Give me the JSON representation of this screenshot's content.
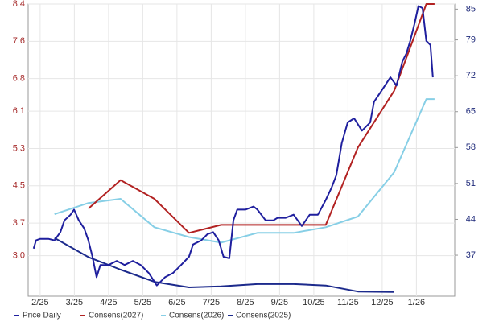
{
  "chart_data": {
    "type": "line",
    "xlim": [
      -0.35,
      12.12
    ],
    "xticks": [
      {
        "value": 0,
        "label": "2/25"
      },
      {
        "value": 1,
        "label": "3/25"
      },
      {
        "value": 2,
        "label": "4/25"
      },
      {
        "value": 3,
        "label": "5/25"
      },
      {
        "value": 4,
        "label": "6/25"
      },
      {
        "value": 5,
        "label": "7/25"
      },
      {
        "value": 6,
        "label": "8/25"
      },
      {
        "value": 7,
        "label": "9/25"
      },
      {
        "value": 8,
        "label": "10/25"
      },
      {
        "value": 9,
        "label": "11/25"
      },
      {
        "value": 10,
        "label": "12/25"
      },
      {
        "value": 11,
        "label": "1/26"
      }
    ],
    "ylim": [
      2.13,
      8.4
    ],
    "yticks": [
      {
        "value": 3,
        "label": "3.0"
      },
      3.7,
      4.5,
      5.3,
      6.1,
      6.8,
      7.6,
      8.4
    ],
    "y2lim": [
      29,
      86
    ],
    "y2ticks": [
      37,
      44,
      51,
      58,
      65,
      72,
      79,
      85
    ],
    "grid": true,
    "series": [
      {
        "name": "Price Daily",
        "color": "#1f1f9e",
        "axis": "y2",
        "x": [
          -0.19,
          -0.12,
          0,
          0.24,
          0.42,
          0.59,
          0.71,
          0.89,
          0.99,
          1.13,
          1.29,
          1.41,
          1.53,
          1.65,
          1.76,
          2,
          2.24,
          2.47,
          2.71,
          2.94,
          3.18,
          3.41,
          3.65,
          3.88,
          4.12,
          4.35,
          4.47,
          4.71,
          4.89,
          5.06,
          5.22,
          5.36,
          5.53,
          5.65,
          5.76,
          6,
          6.24,
          6.35,
          6.59,
          6.82,
          6.94,
          7.18,
          7.41,
          7.65,
          7.88,
          8.12,
          8.35,
          8.52,
          8.66,
          8.82,
          8.99,
          9.18,
          9.41,
          9.65,
          9.76,
          10,
          10.24,
          10.42,
          10.59,
          10.71,
          10.82,
          10.94,
          11.06,
          11.18,
          11.29,
          11.41,
          11.48
        ],
        "values": [
          38.3,
          39.9,
          40.2,
          40.2,
          39.9,
          41.5,
          43.8,
          44.9,
          45.9,
          43.8,
          42.2,
          39.9,
          36.7,
          32.7,
          35.1,
          35.1,
          35.9,
          35.1,
          35.9,
          35.1,
          33.5,
          31.1,
          32.7,
          33.5,
          35.1,
          36.7,
          39.1,
          39.9,
          41.1,
          41.5,
          39.9,
          36.7,
          36.4,
          43.8,
          45.9,
          45.9,
          46.5,
          45.9,
          43.8,
          43.8,
          44.3,
          44.3,
          44.9,
          42.7,
          44.9,
          44.9,
          47.8,
          50.2,
          52.6,
          58.9,
          62.9,
          63.7,
          61.3,
          62.9,
          66.9,
          69.3,
          71.7,
          70.1,
          74.8,
          76.4,
          78.8,
          82,
          85.6,
          85.2,
          78.8,
          78,
          71.7
        ]
      },
      {
        "name": "Consens(2027)",
        "color": "#b22222",
        "x": [
          1.41,
          2.35,
          3.34,
          4.35,
          5.29,
          6.35,
          7.41,
          8.35,
          9.29,
          10.35,
          11.29,
          11.53
        ],
        "values": [
          4.01,
          4.62,
          4.22,
          3.49,
          3.66,
          3.66,
          3.66,
          3.66,
          5.32,
          6.54,
          8.4,
          8.4
        ]
      },
      {
        "name": "Consens(2026)",
        "color": "#87cfe6",
        "x": [
          0.42,
          1.41,
          2.35,
          3.34,
          4.35,
          5.29,
          6.35,
          7.41,
          8.35,
          9.29,
          10.35,
          11.29,
          11.53
        ],
        "values": [
          3.89,
          4.13,
          4.22,
          3.61,
          3.4,
          3.28,
          3.49,
          3.49,
          3.61,
          3.84,
          4.79,
          6.36,
          6.36
        ]
      },
      {
        "name": "Consens(2025)",
        "color": "#1c2a8c",
        "x": [
          0.42,
          1.41,
          2.35,
          3.34,
          4.35,
          5.29,
          6.35,
          7.41,
          8.35,
          9.29,
          10.35
        ],
        "values": [
          3.38,
          2.97,
          2.7,
          2.44,
          2.32,
          2.34,
          2.39,
          2.39,
          2.36,
          2.23,
          2.22
        ]
      }
    ]
  }
}
